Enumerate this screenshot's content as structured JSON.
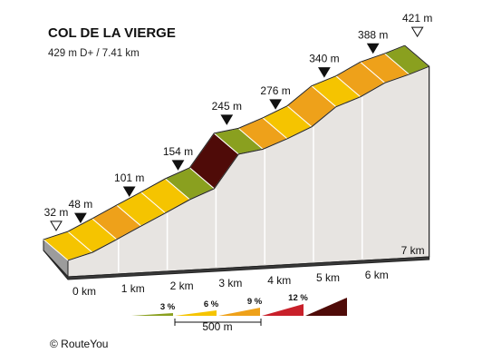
{
  "chart_data": {
    "type": "area",
    "title": "COL DE LA VIERGE",
    "subtitle": "429 m D+ / 7.41 km",
    "x_unit": "km",
    "x_ticks": [
      "0 km",
      "1 km",
      "2 km",
      "3 km",
      "4 km",
      "5 km",
      "6 km",
      "7 km"
    ],
    "profile": [
      {
        "km": 0.0,
        "elev_m": 32
      },
      {
        "km": 0.5,
        "elev_m": 48
      },
      {
        "km": 1.0,
        "elev_m": 74
      },
      {
        "km": 1.5,
        "elev_m": 101
      },
      {
        "km": 2.0,
        "elev_m": 127
      },
      {
        "km": 2.5,
        "elev_m": 154
      },
      {
        "km": 3.0,
        "elev_m": 176
      },
      {
        "km": 3.5,
        "elev_m": 245
      },
      {
        "km": 4.0,
        "elev_m": 255
      },
      {
        "km": 4.5,
        "elev_m": 276
      },
      {
        "km": 5.0,
        "elev_m": 300
      },
      {
        "km": 5.5,
        "elev_m": 340
      },
      {
        "km": 6.0,
        "elev_m": 360
      },
      {
        "km": 6.5,
        "elev_m": 388
      },
      {
        "km": 7.0,
        "elev_m": 405
      },
      {
        "km": 7.41,
        "elev_m": 421
      }
    ],
    "segment_colors": [
      "#f5c400",
      "#f5c400",
      "#eea11a",
      "#f5c400",
      "#f5c400",
      "#8aa01f",
      "#4f0b08",
      "#8aa01f",
      "#eea11a",
      "#f5c400",
      "#eea11a",
      "#f5c400",
      "#eea11a",
      "#eea11a",
      "#8aa01f"
    ],
    "markers": [
      {
        "km": 0.0,
        "label": "32 m",
        "kind": "open"
      },
      {
        "km": 0.5,
        "label": "48 m",
        "kind": "filled"
      },
      {
        "km": 1.5,
        "label": "101 m",
        "kind": "filled"
      },
      {
        "km": 2.5,
        "label": "154 m",
        "kind": "filled"
      },
      {
        "km": 3.5,
        "label": "245 m",
        "kind": "filled"
      },
      {
        "km": 4.5,
        "label": "276 m",
        "kind": "filled"
      },
      {
        "km": 5.5,
        "label": "340 m",
        "kind": "filled"
      },
      {
        "km": 6.5,
        "label": "388 m",
        "kind": "filled"
      },
      {
        "km": 7.41,
        "label": "421 m",
        "kind": "open"
      }
    ],
    "legend": {
      "grades": [
        {
          "label": "3 %",
          "color": "#8aa01f"
        },
        {
          "label": "6 %",
          "color": "#f5c400"
        },
        {
          "label": "9 %",
          "color": "#eea11a"
        },
        {
          "label": "12 %",
          "color": "#c8202a"
        },
        {
          "label": "",
          "color": "#4f0b08"
        }
      ],
      "scale_label": "500 m"
    },
    "colors": {
      "side_wall": "#e7e4e1",
      "base_top": "#9c9c9c",
      "base_front": "#3a3a3a",
      "outline": "#222222"
    }
  },
  "copyright": "©  RouteYou"
}
